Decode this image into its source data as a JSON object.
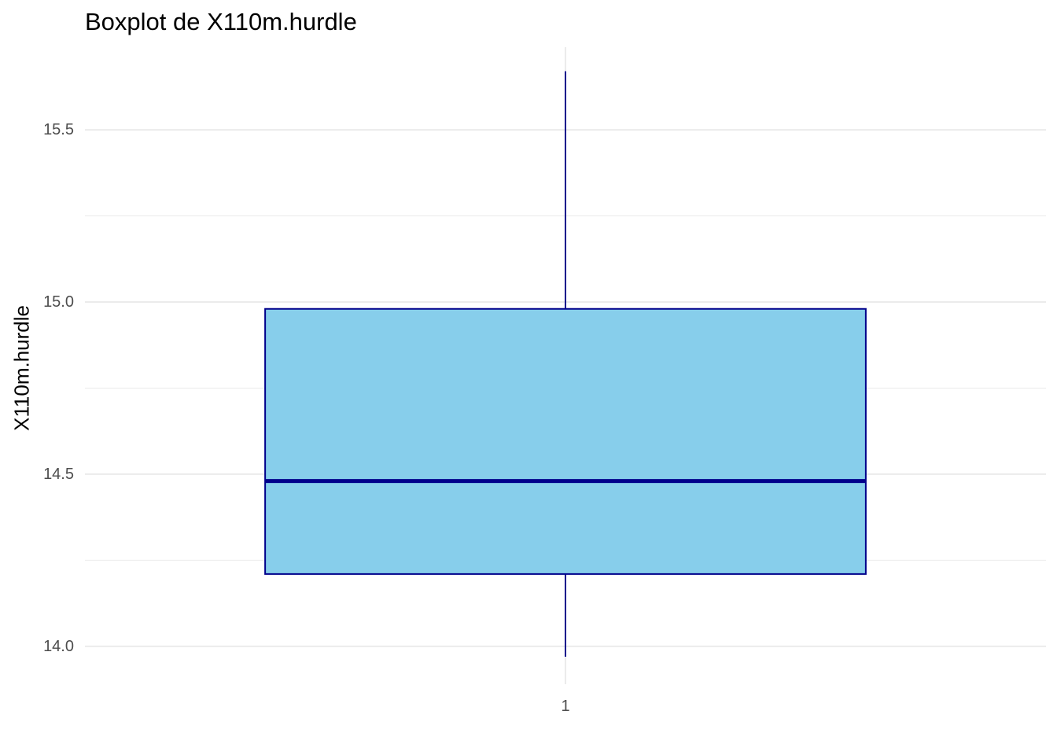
{
  "chart_data": {
    "type": "boxplot",
    "title": "Boxplot de X110m.hurdle",
    "xlabel": "",
    "ylabel": "X110m.hurdle",
    "categories": [
      "1"
    ],
    "ylim": [
      13.89,
      15.74
    ],
    "yticks": [
      14.0,
      14.5,
      15.0,
      15.5
    ],
    "ytick_labels": [
      "14.0",
      "14.5",
      "15.0",
      "15.5"
    ],
    "boxes": [
      {
        "category": "1",
        "whisker_low": 13.97,
        "q1": 14.21,
        "median": 14.48,
        "q3": 14.98,
        "whisker_high": 15.67
      }
    ],
    "grid": true,
    "legend": "none",
    "colors": {
      "box_fill": "#87CEEB",
      "box_stroke": "#00008B",
      "median": "#00008B",
      "whisker": "#00008B",
      "grid": "#EBEBEB",
      "tick_text": "#4D4D4D"
    }
  }
}
